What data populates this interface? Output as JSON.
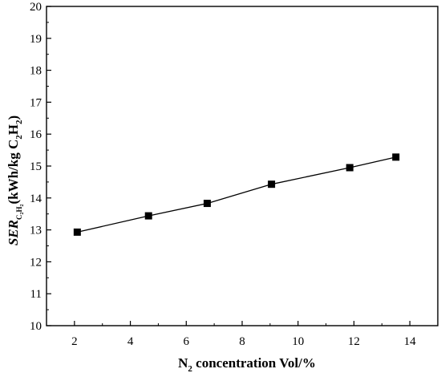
{
  "chart_data": {
    "type": "line",
    "x": [
      2.1,
      4.65,
      6.75,
      9.05,
      11.85,
      13.5
    ],
    "series": [
      {
        "values": [
          12.93,
          13.44,
          13.83,
          14.43,
          14.95,
          15.28
        ]
      }
    ],
    "xlim": [
      1,
      15
    ],
    "ylim": [
      10,
      20
    ],
    "xticks": [
      2,
      4,
      6,
      8,
      10,
      12,
      14
    ],
    "yticks": [
      10,
      11,
      12,
      13,
      14,
      15,
      16,
      17,
      18,
      19,
      20
    ],
    "xlabel": {
      "part1": "N",
      "sub1": "2",
      "part2": " concentration Vol/%"
    },
    "ylabel": {
      "italic": "SER",
      "sub_base": "C",
      "sub_sub1": "2",
      "sub_base2": "H",
      "sub_sub2": "2",
      "part1": "(kWh/kg C",
      "sub1": "2",
      "part2": "H",
      "sub2": "2",
      "part3": ")"
    },
    "marker": "square",
    "grid": false,
    "color": "#000000"
  }
}
